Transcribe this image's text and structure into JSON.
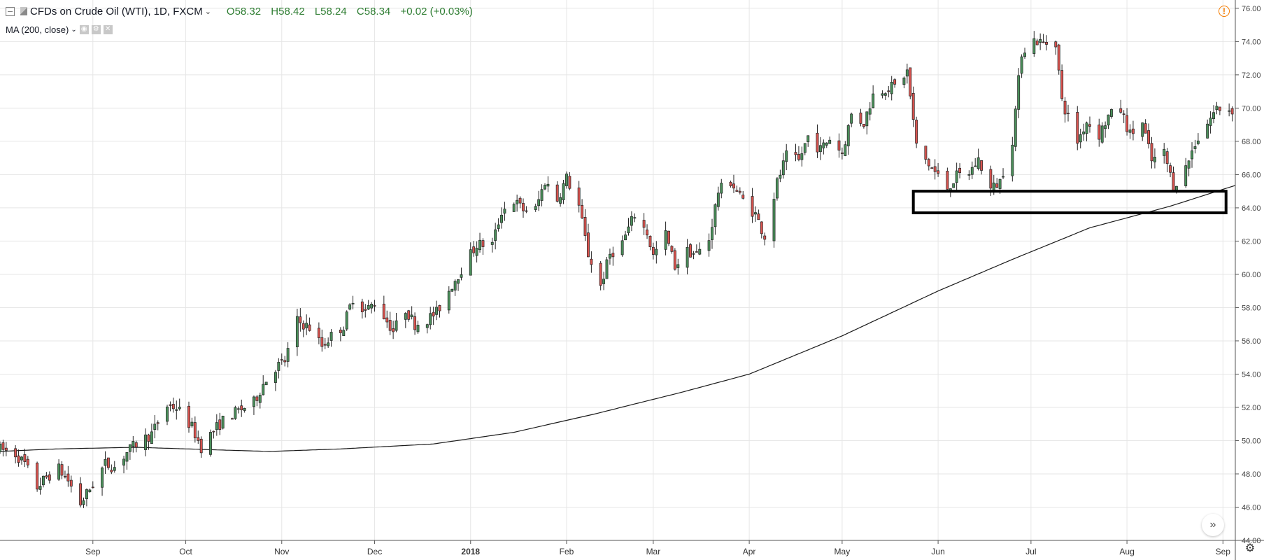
{
  "header": {
    "symbol": "CFDs on Crude Oil (WTI), 1D, FXCM",
    "open": "O58.32",
    "high": "H58.42",
    "low": "L58.24",
    "close": "C58.34",
    "change": "+0.02 (+0.03%)"
  },
  "indicator": {
    "label": "MA (200, close)"
  },
  "icons": {
    "collapse": "collapse-icon",
    "symbol_flag": "symbol-flag-icon",
    "warning": "warning-icon",
    "scroll_right": "double-chevron-right-icon",
    "settings": "gear-icon",
    "settings_small": "settings-icon",
    "visibility": "eye-icon",
    "remove": "close-icon"
  },
  "colors": {
    "up": "#4a8f5a",
    "down": "#d9534f",
    "ma_line": "#1a1a1a",
    "highlight_box": "#000000",
    "grid": "#e6e6e6"
  },
  "chart_data": {
    "type": "candlestick",
    "grid": true,
    "y_axis": {
      "position": "right",
      "ylim": [
        44,
        76.5
      ],
      "tick_labels": [
        "44.00",
        "46.00",
        "48.00",
        "50.00",
        "52.00",
        "54.00",
        "56.00",
        "58.00",
        "60.00",
        "62.00",
        "64.00",
        "66.00",
        "68.00",
        "70.00",
        "72.00",
        "74.00",
        "76.00"
      ]
    },
    "x_axis": {
      "xlim": [
        "2017-08-02",
        "2018-09-05"
      ],
      "ticks": [
        {
          "label": "Sep",
          "date": "2017-09-01"
        },
        {
          "label": "Oct",
          "date": "2017-10-01"
        },
        {
          "label": "Nov",
          "date": "2017-11-01"
        },
        {
          "label": "Dec",
          "date": "2017-12-01"
        },
        {
          "label": "2018",
          "date": "2018-01-01"
        },
        {
          "label": "Feb",
          "date": "2018-02-01"
        },
        {
          "label": "Mar",
          "date": "2018-03-01"
        },
        {
          "label": "Apr",
          "date": "2018-04-01"
        },
        {
          "label": "May",
          "date": "2018-05-01"
        },
        {
          "label": "Jun",
          "date": "2018-06-01"
        },
        {
          "label": "Jul",
          "date": "2018-07-01"
        },
        {
          "label": "Aug",
          "date": "2018-08-01"
        },
        {
          "label": "Sep",
          "date": "2018-09-01"
        }
      ]
    },
    "price_anchors": [
      [
        "2017-08-02",
        49.5
      ],
      [
        "2017-08-07",
        49.2
      ],
      [
        "2017-08-10",
        48.6
      ],
      [
        "2017-08-14",
        47.2
      ],
      [
        "2017-08-17",
        47.8
      ],
      [
        "2017-08-21",
        48.3
      ],
      [
        "2017-08-24",
        47.6
      ],
      [
        "2017-08-28",
        46.2
      ],
      [
        "2017-08-31",
        47.1
      ],
      [
        "2017-09-05",
        48.6
      ],
      [
        "2017-09-08",
        48.4
      ],
      [
        "2017-09-12",
        49.3
      ],
      [
        "2017-09-15",
        49.8
      ],
      [
        "2017-09-20",
        50.4
      ],
      [
        "2017-09-25",
        52.1
      ],
      [
        "2017-09-28",
        52.0
      ],
      [
        "2017-10-03",
        50.8
      ],
      [
        "2017-10-06",
        49.6
      ],
      [
        "2017-10-10",
        50.6
      ],
      [
        "2017-10-13",
        51.2
      ],
      [
        "2017-10-18",
        51.8
      ],
      [
        "2017-10-23",
        52.3
      ],
      [
        "2017-10-26",
        53.4
      ],
      [
        "2017-10-30",
        54.4
      ],
      [
        "2017-11-02",
        54.8
      ],
      [
        "2017-11-06",
        57.2
      ],
      [
        "2017-11-10",
        56.8
      ],
      [
        "2017-11-14",
        55.7
      ],
      [
        "2017-11-17",
        56.3
      ],
      [
        "2017-11-21",
        56.9
      ],
      [
        "2017-11-24",
        58.6
      ],
      [
        "2017-11-28",
        57.8
      ],
      [
        "2017-12-01",
        58.3
      ],
      [
        "2017-12-04",
        57.5
      ],
      [
        "2017-12-07",
        56.6
      ],
      [
        "2017-12-11",
        57.9
      ],
      [
        "2017-12-14",
        57.0
      ],
      [
        "2017-12-18",
        57.3
      ],
      [
        "2017-12-21",
        57.7
      ],
      [
        "2017-12-27",
        59.7
      ],
      [
        "2018-01-03",
        61.8
      ],
      [
        "2018-01-08",
        61.8
      ],
      [
        "2018-01-11",
        63.8
      ],
      [
        "2018-01-15",
        64.4
      ],
      [
        "2018-01-18",
        63.9
      ],
      [
        "2018-01-22",
        63.9
      ],
      [
        "2018-01-25",
        65.6
      ],
      [
        "2018-01-29",
        64.5
      ],
      [
        "2018-02-01",
        65.8
      ],
      [
        "2018-02-05",
        64.1
      ],
      [
        "2018-02-08",
        61.2
      ],
      [
        "2018-02-12",
        59.3
      ],
      [
        "2018-02-15",
        61.2
      ],
      [
        "2018-02-19",
        61.9
      ],
      [
        "2018-02-23",
        63.6
      ],
      [
        "2018-02-27",
        62.5
      ],
      [
        "2018-03-01",
        61.1
      ],
      [
        "2018-03-05",
        62.4
      ],
      [
        "2018-03-08",
        60.5
      ],
      [
        "2018-03-12",
        61.4
      ],
      [
        "2018-03-15",
        61.2
      ],
      [
        "2018-03-19",
        62.1
      ],
      [
        "2018-03-22",
        65.0
      ],
      [
        "2018-03-26",
        65.6
      ],
      [
        "2018-03-29",
        64.7
      ],
      [
        "2018-04-03",
        63.6
      ],
      [
        "2018-04-06",
        62.3
      ],
      [
        "2018-04-10",
        65.5
      ],
      [
        "2018-04-13",
        67.1
      ],
      [
        "2018-04-17",
        66.8
      ],
      [
        "2018-04-20",
        68.3
      ],
      [
        "2018-04-24",
        67.5
      ],
      [
        "2018-04-27",
        68.2
      ],
      [
        "2018-05-01",
        67.3
      ],
      [
        "2018-05-04",
        69.6
      ],
      [
        "2018-05-08",
        69.1
      ],
      [
        "2018-05-11",
        70.8
      ],
      [
        "2018-05-15",
        71.2
      ],
      [
        "2018-05-18",
        71.3
      ],
      [
        "2018-05-22",
        72.2
      ],
      [
        "2018-05-25",
        67.7
      ],
      [
        "2018-05-29",
        66.6
      ],
      [
        "2018-06-01",
        65.9
      ],
      [
        "2018-06-04",
        65.2
      ],
      [
        "2018-06-07",
        65.9
      ],
      [
        "2018-06-11",
        66.1
      ],
      [
        "2018-06-14",
        66.9
      ],
      [
        "2018-06-18",
        65.1
      ],
      [
        "2018-06-21",
        65.6
      ],
      [
        "2018-06-25",
        68.1
      ],
      [
        "2018-06-28",
        73.4
      ],
      [
        "2018-07-02",
        74.1
      ],
      [
        "2018-07-05",
        73.9
      ],
      [
        "2018-07-09",
        74.0
      ],
      [
        "2018-07-11",
        70.4
      ],
      [
        "2018-07-16",
        68.0
      ],
      [
        "2018-07-19",
        69.2
      ],
      [
        "2018-07-23",
        68.4
      ],
      [
        "2018-07-26",
        69.5
      ],
      [
        "2018-07-30",
        69.9
      ],
      [
        "2018-08-02",
        68.4
      ],
      [
        "2018-08-06",
        69.1
      ],
      [
        "2018-08-09",
        66.8
      ],
      [
        "2018-08-13",
        67.3
      ],
      [
        "2018-08-16",
        65.3
      ],
      [
        "2018-08-20",
        66.4
      ],
      [
        "2018-08-23",
        67.9
      ],
      [
        "2018-08-27",
        69.1
      ],
      [
        "2018-08-30",
        70.0
      ],
      [
        "2018-09-04",
        69.9
      ]
    ],
    "ma_anchors": [
      [
        "2017-08-02",
        49.35
      ],
      [
        "2017-08-20",
        49.5
      ],
      [
        "2017-09-15",
        49.6
      ],
      [
        "2017-10-10",
        49.45
      ],
      [
        "2017-10-28",
        49.35
      ],
      [
        "2017-11-20",
        49.5
      ],
      [
        "2017-12-20",
        49.8
      ],
      [
        "2018-01-15",
        50.5
      ],
      [
        "2018-02-10",
        51.6
      ],
      [
        "2018-03-10",
        52.9
      ],
      [
        "2018-04-01",
        54.0
      ],
      [
        "2018-05-01",
        56.3
      ],
      [
        "2018-06-01",
        59.0
      ],
      [
        "2018-06-25",
        60.9
      ],
      [
        "2018-07-20",
        62.8
      ],
      [
        "2018-08-15",
        64.1
      ],
      [
        "2018-09-05",
        65.35
      ]
    ],
    "annotations": [
      {
        "type": "rectangle",
        "from_date": "2018-05-24",
        "to_date": "2018-09-02",
        "y_low": 63.7,
        "y_high": 65.0
      }
    ]
  }
}
